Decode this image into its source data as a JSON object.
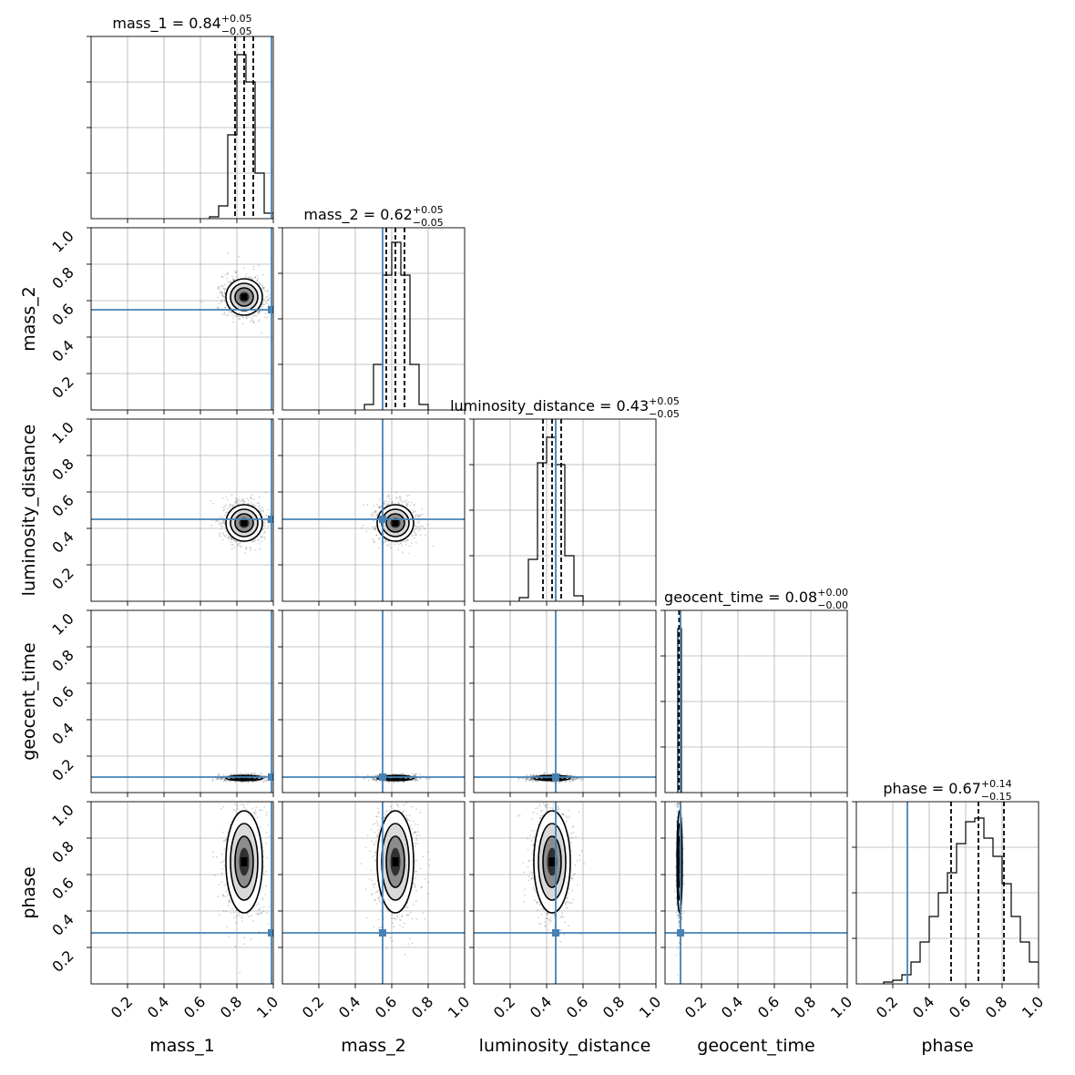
{
  "chart_data": {
    "type": "corner",
    "parameters": [
      "mass_1",
      "mass_2",
      "luminosity_distance",
      "geocent_time",
      "phase"
    ],
    "axis_range": [
      0,
      1
    ],
    "tick_labels": [
      "0.2",
      "0.4",
      "0.6",
      "0.8",
      "1.0"
    ],
    "grid": true,
    "titles": [
      {
        "name": "mass_1",
        "text": "mass_1 = 0.84",
        "sup": "+0.05",
        "sub": "−0.05",
        "median": 0.84,
        "q_low": 0.79,
        "q_high": 0.89
      },
      {
        "name": "mass_2",
        "text": "mass_2 = 0.62",
        "sup": "+0.05",
        "sub": "−0.05",
        "median": 0.62,
        "q_low": 0.57,
        "q_high": 0.67
      },
      {
        "name": "luminosity_distance",
        "text": "luminosity_distance = 0.43",
        "sup": "+0.05",
        "sub": "−0.05",
        "median": 0.43,
        "q_low": 0.38,
        "q_high": 0.48
      },
      {
        "name": "geocent_time",
        "text": "geocent_time = 0.08",
        "sup": "+0.00",
        "sub": "−0.00",
        "median": 0.08,
        "q_low": 0.077,
        "q_high": 0.083
      },
      {
        "name": "phase",
        "text": "phase = 0.67",
        "sup": "+0.14",
        "sub": "−0.15",
        "median": 0.67,
        "q_low": 0.52,
        "q_high": 0.81
      }
    ],
    "truths": [
      0.99,
      0.55,
      0.45,
      0.085,
      0.28
    ],
    "truth_color": "#4682b4",
    "sigmas": [
      0.05,
      0.05,
      0.05,
      0.004,
      0.14
    ],
    "histograms": [
      {
        "edges": [
          0.65,
          0.7,
          0.75,
          0.8,
          0.85,
          0.9,
          0.95,
          1.0
        ],
        "heights": [
          0.01,
          0.07,
          0.46,
          0.9,
          0.75,
          0.25,
          0.03
        ]
      },
      {
        "edges": [
          0.45,
          0.5,
          0.55,
          0.6,
          0.65,
          0.7,
          0.75,
          0.8
        ],
        "heights": [
          0.03,
          0.25,
          0.74,
          0.92,
          0.74,
          0.25,
          0.03
        ]
      },
      {
        "edges": [
          0.25,
          0.3,
          0.35,
          0.4,
          0.45,
          0.5,
          0.55,
          0.6
        ],
        "heights": [
          0.02,
          0.23,
          0.76,
          0.9,
          0.75,
          0.25,
          0.03
        ]
      },
      {
        "edges": [
          0.07,
          0.08,
          0.09
        ],
        "heights": [
          0.9,
          0.9
        ]
      },
      {
        "edges": [
          0.15,
          0.2,
          0.25,
          0.3,
          0.35,
          0.4,
          0.45,
          0.5,
          0.55,
          0.6,
          0.65,
          0.7,
          0.75,
          0.8,
          0.85,
          0.9,
          0.95,
          1.0
        ],
        "heights": [
          0.01,
          0.02,
          0.05,
          0.12,
          0.23,
          0.37,
          0.5,
          0.61,
          0.77,
          0.89,
          0.91,
          0.8,
          0.7,
          0.55,
          0.37,
          0.23,
          0.12
        ]
      }
    ]
  }
}
